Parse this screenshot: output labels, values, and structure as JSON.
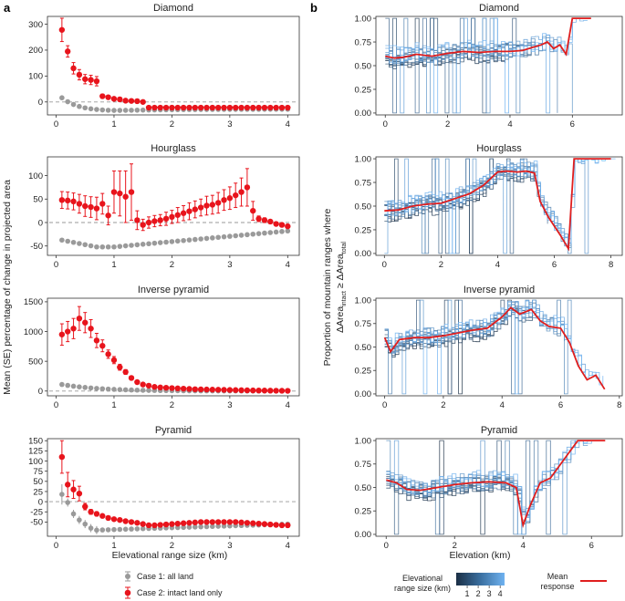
{
  "panel_labels": {
    "a": "a",
    "b": "b"
  },
  "colors": {
    "case1": "#999999",
    "case2": "#e8141c",
    "mean": "#e01e1e",
    "dark": "#1b2f45",
    "light": "#6fb2f0"
  },
  "left_axis": {
    "xlabel": "Elevational range size (km)",
    "ylabel": "Mean (SE) percentage of change in projected area"
  },
  "right_axis": {
    "xlabel": "Elevation (km)",
    "ylabel_line1": "Proportion of mountain ranges where",
    "ylabel_line2": "ΔArea",
    "ylabel_sub1": "intact",
    "ylabel_mid": " ≥ ΔArea",
    "ylabel_sub2": "total"
  },
  "legend_left": {
    "case1": "Case 1: all land",
    "case2": "Case 2: intact land only"
  },
  "legend_right": {
    "colorbar_title_1": "Elevational",
    "colorbar_title_2": "range size (km)",
    "colorbar_ticks": [
      "1",
      "2",
      "3",
      "4"
    ],
    "mean_label_1": "Mean",
    "mean_label_2": "response"
  },
  "chart_data": [
    {
      "type": "scatter",
      "panel": "a",
      "title": "Diamond",
      "xlabel": "",
      "ylabel": "",
      "xlim": [
        -0.15,
        4.2
      ],
      "ylim": [
        -50,
        330
      ],
      "xticks": [
        0,
        1,
        2,
        3,
        4
      ],
      "yticks": [
        0,
        100,
        200,
        300
      ],
      "series": [
        {
          "name": "Case 1: all land",
          "type": "errorbar",
          "x": "0.1..4.0 step 0.1",
          "start": 18,
          "end": -28,
          "decay": 3.5,
          "min": -50
        },
        {
          "name": "Case 2: intact land only",
          "type": "errorbar",
          "x": [
            0.1,
            0.2,
            0.3,
            0.4,
            0.5,
            0.6,
            0.7,
            0.8,
            0.9,
            1.0,
            1.1,
            1.2,
            1.3,
            1.4,
            1.5,
            1.6,
            1.7,
            1.8,
            1.9,
            2.0,
            2.1,
            2.2,
            2.3,
            2.4,
            2.5,
            2.6,
            2.7,
            2.8,
            2.9,
            3.0,
            3.1,
            3.2,
            3.3,
            3.4,
            3.5,
            3.6,
            3.7,
            3.8,
            3.9,
            4.0
          ],
          "y": [
            278,
            195,
            130,
            105,
            88,
            85,
            80,
            22,
            18,
            12,
            10,
            5,
            4,
            3,
            0,
            -22,
            -22,
            -22,
            -22,
            -22,
            -22,
            -22,
            -22,
            -22,
            -22,
            -22,
            -22,
            -22,
            -22,
            -22,
            -22,
            -22,
            -22,
            -22,
            -22,
            -22,
            -22,
            -22,
            -22,
            -22
          ],
          "err": [
            45,
            22,
            22,
            20,
            18,
            18,
            18,
            8,
            6,
            6,
            6,
            6,
            6,
            6,
            6,
            4,
            4,
            4,
            4,
            4,
            4,
            4,
            4,
            4,
            4,
            4,
            4,
            4,
            4,
            4,
            4,
            4,
            4,
            4,
            4,
            4,
            4,
            4,
            4,
            4
          ]
        }
      ]
    },
    {
      "type": "scatter",
      "panel": "a",
      "title": "Hourglass",
      "xlim": [
        -0.15,
        4.2
      ],
      "ylim": [
        -70,
        140
      ],
      "xticks": [
        0,
        1,
        2,
        3,
        4
      ],
      "yticks": [
        -50,
        0,
        50,
        100
      ],
      "series": [
        {
          "name": "Case 1: all land",
          "type": "errorbar",
          "start": -35,
          "mid": -52,
          "end": -18
        },
        {
          "name": "Case 2: intact land only",
          "type": "errorbar",
          "x": [
            0.1,
            0.2,
            0.3,
            0.4,
            0.5,
            0.6,
            0.7,
            0.8,
            0.9,
            1.0,
            1.1,
            1.2,
            1.3,
            1.4,
            1.5,
            1.6,
            1.7,
            1.8,
            1.9,
            2.0,
            2.1,
            2.2,
            2.3,
            2.4,
            2.5,
            2.6,
            2.7,
            2.8,
            2.9,
            3.0,
            3.1,
            3.2,
            3.3,
            3.4,
            3.5,
            3.6,
            3.7,
            3.8,
            3.9,
            4.0
          ],
          "y": [
            48,
            47,
            45,
            40,
            35,
            33,
            30,
            40,
            15,
            65,
            62,
            55,
            65,
            5,
            -5,
            0,
            3,
            5,
            8,
            12,
            16,
            20,
            24,
            28,
            32,
            36,
            38,
            42,
            48,
            52,
            58,
            65,
            75,
            25,
            8,
            5,
            2,
            -3,
            -5,
            -8
          ],
          "err": [
            18,
            18,
            18,
            20,
            22,
            22,
            24,
            22,
            20,
            45,
            48,
            55,
            60,
            20,
            12,
            12,
            12,
            12,
            14,
            14,
            16,
            16,
            18,
            18,
            18,
            20,
            20,
            22,
            22,
            24,
            26,
            30,
            40,
            20,
            6,
            5,
            4,
            4,
            4,
            4
          ]
        }
      ]
    },
    {
      "type": "scatter",
      "panel": "a",
      "title": "Inverse pyramid",
      "xlim": [
        -0.15,
        4.2
      ],
      "ylim": [
        -80,
        1560
      ],
      "xticks": [
        0,
        1,
        2,
        3,
        4
      ],
      "yticks": [
        0,
        500,
        1000,
        1500
      ],
      "series": [
        {
          "name": "Case 1: all land",
          "type": "errorbar",
          "start": 110,
          "end": 0
        },
        {
          "name": "Case 2: intact land only",
          "type": "errorbar",
          "x": [
            0.1,
            0.2,
            0.3,
            0.4,
            0.5,
            0.6,
            0.7,
            0.8,
            0.9,
            1.0,
            1.1,
            1.2,
            1.3,
            1.4,
            1.5,
            1.6,
            1.7,
            1.8,
            1.9,
            2.0,
            2.1,
            2.2,
            2.3,
            2.4,
            2.5,
            2.6,
            2.7,
            2.8,
            2.9,
            3.0,
            3.1,
            3.2,
            3.3,
            3.4,
            3.5,
            3.6,
            3.7,
            3.8,
            3.9,
            4.0
          ],
          "y": [
            950,
            1000,
            1050,
            1220,
            1150,
            1050,
            850,
            760,
            620,
            520,
            400,
            320,
            220,
            150,
            110,
            90,
            70,
            60,
            55,
            50,
            45,
            40,
            35,
            30,
            28,
            26,
            24,
            22,
            20,
            18,
            16,
            14,
            12,
            10,
            9,
            8,
            7,
            6,
            5,
            4
          ],
          "err": [
            180,
            170,
            170,
            200,
            170,
            150,
            120,
            100,
            70,
            60,
            50,
            40,
            30,
            20,
            15,
            10,
            8,
            6,
            5,
            5,
            5,
            5,
            4,
            4,
            4,
            4,
            4,
            4,
            4,
            4,
            4,
            4,
            4,
            4,
            4,
            4,
            4,
            4,
            4,
            4
          ]
        }
      ]
    },
    {
      "type": "scatter",
      "panel": "a",
      "title": "Pyramid",
      "xlim": [
        -0.15,
        4.2
      ],
      "ylim": [
        -85,
        155
      ],
      "xticks": [
        0,
        1,
        2,
        3,
        4
      ],
      "yticks": [
        -50,
        -25,
        0,
        25,
        50,
        75,
        100,
        125,
        150
      ],
      "series": [
        {
          "name": "Case 1: all land",
          "type": "errorbar",
          "y_start": [
            18,
            -2,
            -30,
            -45,
            -55,
            -65,
            -70
          ],
          "end": -55
        },
        {
          "name": "Case 2: intact land only",
          "type": "errorbar",
          "x": [
            0.1,
            0.2,
            0.3,
            0.4,
            0.5,
            0.6,
            0.7,
            0.8,
            0.9,
            1.0,
            1.1,
            1.2,
            1.3,
            1.4,
            1.5,
            1.6,
            1.7,
            1.8,
            1.9,
            2.0,
            2.1,
            2.2,
            2.3,
            2.4,
            2.5,
            2.6,
            2.7,
            2.8,
            2.9,
            3.0,
            3.1,
            3.2,
            3.3,
            3.4,
            3.5,
            3.6,
            3.7,
            3.8,
            3.9,
            4.0
          ],
          "y": [
            110,
            42,
            30,
            20,
            -12,
            -25,
            -30,
            -35,
            -40,
            -43,
            -45,
            -48,
            -50,
            -52,
            -55,
            -58,
            -58,
            -57,
            -56,
            -55,
            -54,
            -53,
            -52,
            -51,
            -50,
            -50,
            -50,
            -50,
            -50,
            -50,
            -50,
            -51,
            -52,
            -53,
            -54,
            -55,
            -56,
            -57,
            -58,
            -58
          ],
          "err": [
            40,
            30,
            22,
            18,
            8,
            6,
            5,
            4,
            4,
            4,
            4,
            4,
            4,
            4,
            4,
            4,
            4,
            4,
            4,
            4,
            4,
            4,
            4,
            4,
            4,
            4,
            4,
            4,
            4,
            4,
            4,
            4,
            4,
            4,
            4,
            4,
            4,
            4,
            4,
            4
          ]
        }
      ]
    },
    {
      "type": "line",
      "panel": "b",
      "title": "Diamond",
      "xlim": [
        -0.3,
        7.6
      ],
      "ylim": [
        -0.02,
        1.02
      ],
      "xticks": [
        0,
        2,
        4,
        6
      ],
      "yticks": [
        0.0,
        0.25,
        0.5,
        0.75,
        1.0
      ],
      "series": [
        {
          "name": "Mean response",
          "x": [
            0.0,
            0.3,
            0.6,
            1.0,
            1.5,
            2.0,
            2.5,
            3.0,
            3.5,
            4.0,
            4.4,
            4.8,
            5.0,
            5.2,
            5.4,
            5.6,
            5.8,
            6.0,
            6.2,
            6.4,
            6.6
          ],
          "y": [
            0.6,
            0.58,
            0.59,
            0.62,
            0.6,
            0.63,
            0.65,
            0.64,
            0.65,
            0.65,
            0.66,
            0.7,
            0.72,
            0.75,
            0.68,
            0.72,
            0.62,
            1.0,
            1.0,
            1.0,
            1.0
          ]
        }
      ]
    },
    {
      "type": "line",
      "panel": "b",
      "title": "Hourglass",
      "xlim": [
        -0.3,
        8.4
      ],
      "ylim": [
        -0.02,
        1.02
      ],
      "xticks": [
        0,
        2,
        4,
        6,
        8
      ],
      "yticks": [
        0.0,
        0.25,
        0.5,
        0.75,
        1.0
      ],
      "series": [
        {
          "name": "Mean response",
          "x": [
            0.0,
            0.5,
            1.0,
            1.5,
            2.0,
            2.5,
            3.0,
            3.5,
            4.0,
            4.3,
            4.7,
            5.0,
            5.3,
            5.5,
            5.8,
            6.2,
            6.5,
            6.7,
            7.0,
            7.5,
            8.0
          ],
          "y": [
            0.45,
            0.46,
            0.5,
            0.52,
            0.53,
            0.58,
            0.63,
            0.72,
            0.86,
            0.87,
            0.86,
            0.87,
            0.85,
            0.55,
            0.38,
            0.2,
            0.05,
            1.0,
            1.0,
            1.0,
            1.0
          ]
        }
      ]
    },
    {
      "type": "line",
      "panel": "b",
      "title": "Inverse pyramid",
      "xlim": [
        -0.3,
        8.1
      ],
      "ylim": [
        -0.02,
        1.02
      ],
      "xticks": [
        0,
        2,
        4,
        6,
        8
      ],
      "yticks": [
        0.0,
        0.25,
        0.5,
        0.75,
        1.0
      ],
      "series": [
        {
          "name": "Mean response",
          "x": [
            0.0,
            0.2,
            0.5,
            1.0,
            1.5,
            2.0,
            2.5,
            3.0,
            3.5,
            4.0,
            4.3,
            4.6,
            5.0,
            5.3,
            5.6,
            6.0,
            6.3,
            6.6,
            6.9,
            7.2,
            7.5
          ],
          "y": [
            0.6,
            0.45,
            0.58,
            0.6,
            0.6,
            0.62,
            0.65,
            0.68,
            0.7,
            0.82,
            0.92,
            0.85,
            0.9,
            0.78,
            0.72,
            0.7,
            0.55,
            0.3,
            0.15,
            0.2,
            0.05
          ]
        }
      ]
    },
    {
      "type": "line",
      "panel": "b",
      "title": "Pyramid",
      "xlim": [
        -0.3,
        6.9
      ],
      "ylim": [
        -0.02,
        1.02
      ],
      "xticks": [
        0,
        2,
        4,
        6
      ],
      "yticks": [
        0.0,
        0.25,
        0.5,
        0.75,
        1.0
      ],
      "series": [
        {
          "name": "Mean response",
          "x": [
            0.0,
            0.3,
            0.6,
            1.0,
            1.5,
            2.0,
            2.5,
            3.0,
            3.5,
            3.8,
            4.0,
            4.2,
            4.5,
            4.8,
            5.0,
            5.3,
            5.6,
            6.0,
            6.4
          ],
          "y": [
            0.58,
            0.55,
            0.48,
            0.47,
            0.5,
            0.53,
            0.55,
            0.56,
            0.55,
            0.5,
            0.1,
            0.3,
            0.55,
            0.6,
            0.7,
            0.85,
            1.0,
            1.0,
            1.0
          ]
        }
      ]
    }
  ]
}
